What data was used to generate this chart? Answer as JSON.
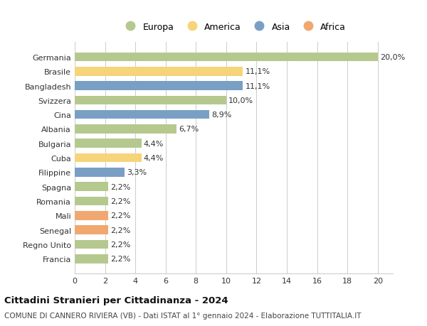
{
  "countries": [
    "Francia",
    "Regno Unito",
    "Senegal",
    "Mali",
    "Romania",
    "Spagna",
    "Filippine",
    "Cuba",
    "Bulgaria",
    "Albania",
    "Cina",
    "Svizzera",
    "Bangladesh",
    "Brasile",
    "Germania"
  ],
  "values": [
    2.2,
    2.2,
    2.2,
    2.2,
    2.2,
    2.2,
    3.3,
    4.4,
    4.4,
    6.7,
    8.9,
    10.0,
    11.1,
    11.1,
    20.0
  ],
  "labels": [
    "2,2%",
    "2,2%",
    "2,2%",
    "2,2%",
    "2,2%",
    "2,2%",
    "3,3%",
    "4,4%",
    "4,4%",
    "6,7%",
    "8,9%",
    "10,0%",
    "11,1%",
    "11,1%",
    "20,0%"
  ],
  "categories": [
    "Europa",
    "Europa",
    "Africa",
    "Africa",
    "Europa",
    "Europa",
    "Asia",
    "America",
    "Europa",
    "Europa",
    "Asia",
    "Europa",
    "Asia",
    "America",
    "Europa"
  ],
  "colors": {
    "Europa": "#b5c98e",
    "America": "#f5d47a",
    "Asia": "#7a9fc4",
    "Africa": "#f0a870"
  },
  "legend_order": [
    "Europa",
    "America",
    "Asia",
    "Africa"
  ],
  "title": "Cittadini Stranieri per Cittadinanza - 2024",
  "subtitle": "COMUNE DI CANNERO RIVIERA (VB) - Dati ISTAT al 1° gennaio 2024 - Elaborazione TUTTITALIA.IT",
  "xlim": [
    0,
    21
  ],
  "xticks": [
    0,
    2,
    4,
    6,
    8,
    10,
    12,
    14,
    16,
    18,
    20
  ],
  "background_color": "#ffffff",
  "grid_color": "#cccccc",
  "bar_height": 0.62,
  "label_fontsize": 8,
  "tick_fontsize": 8,
  "title_fontsize": 9.5,
  "subtitle_fontsize": 7.5,
  "legend_fontsize": 9
}
